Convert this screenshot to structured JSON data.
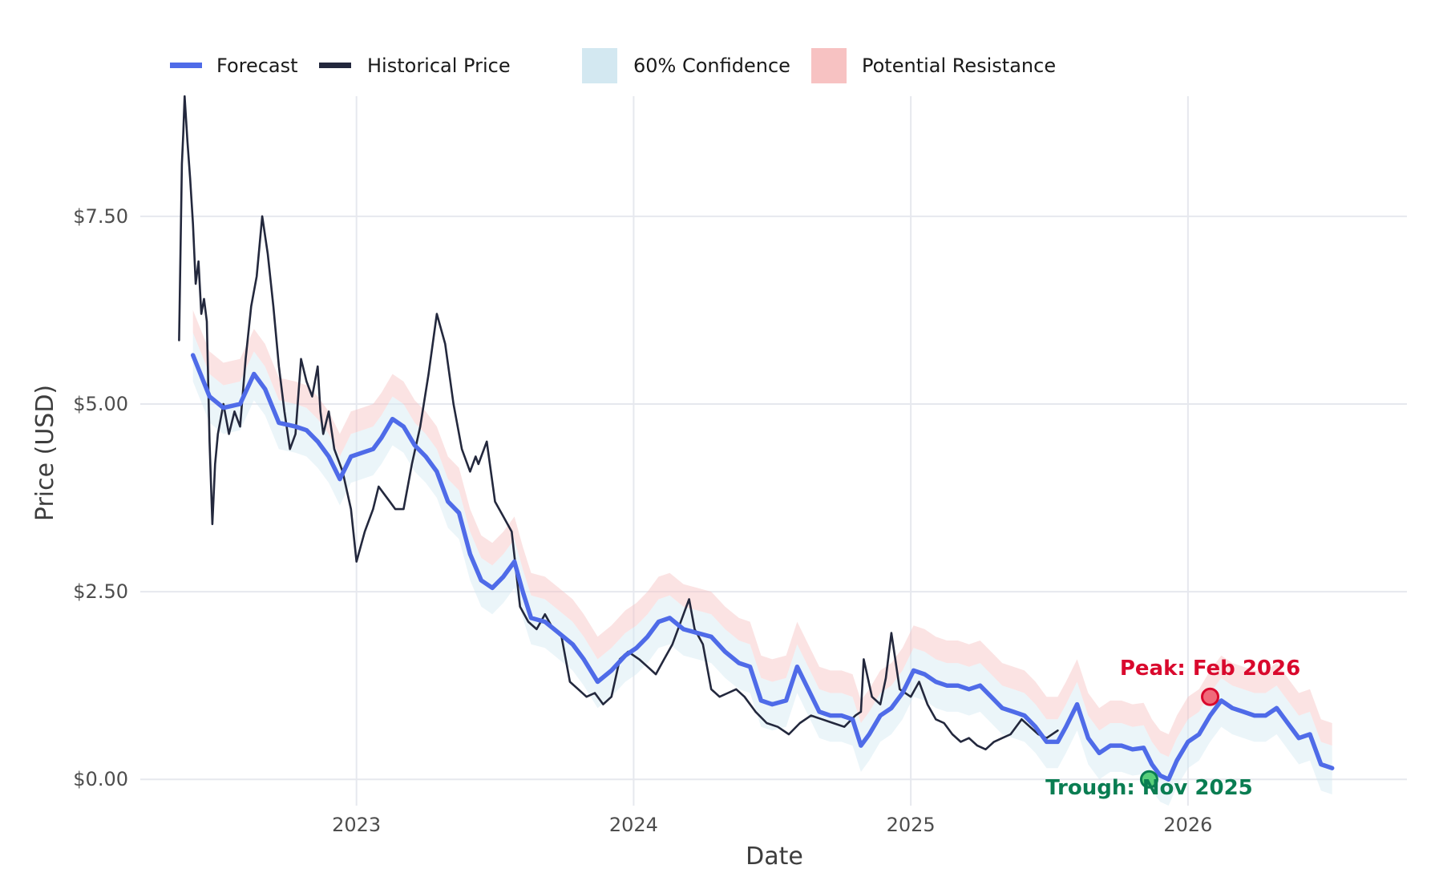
{
  "chart_data": {
    "type": "line",
    "title": "",
    "xlabel": "Date",
    "ylabel": "Price (USD)",
    "xlim": [
      2022.22,
      2026.79
    ],
    "ylim": [
      -0.35,
      9.1
    ],
    "x_ticks": [
      2023,
      2024,
      2025,
      2026
    ],
    "x_tick_labels": [
      "2023",
      "2024",
      "2025",
      "2026"
    ],
    "y_ticks": [
      0.0,
      2.5,
      5.0,
      7.5
    ],
    "y_tick_labels": [
      "$0.00",
      "$2.50",
      "$5.00",
      "$7.50"
    ],
    "grid": true,
    "legend": {
      "placement": "top-left",
      "items": [
        {
          "label": "Forecast",
          "kind": "line",
          "color": "#4f6be8"
        },
        {
          "label": "Historical Price",
          "kind": "line",
          "color": "#23283d"
        },
        {
          "label": "60% Confidence",
          "kind": "band",
          "color": "#d3e8f1"
        },
        {
          "label": "Potential Resistance",
          "kind": "band",
          "color": "#f7c2c2"
        }
      ]
    },
    "series": [
      {
        "name": "Historical Price",
        "color": "#23283d",
        "x": [
          2022.36,
          2022.37,
          2022.375,
          2022.38,
          2022.39,
          2022.4,
          2022.41,
          2022.42,
          2022.43,
          2022.44,
          2022.45,
          2022.46,
          2022.47,
          2022.48,
          2022.49,
          2022.5,
          2022.52,
          2022.54,
          2022.56,
          2022.58,
          2022.6,
          2022.62,
          2022.64,
          2022.66,
          2022.68,
          2022.7,
          2022.72,
          2022.74,
          2022.76,
          2022.78,
          2022.8,
          2022.82,
          2022.84,
          2022.86,
          2022.87,
          2022.88,
          2022.9,
          2022.92,
          2022.95,
          2022.98,
          2023.0,
          2023.03,
          2023.06,
          2023.08,
          2023.1,
          2023.12,
          2023.14,
          2023.17,
          2023.2,
          2023.23,
          2023.26,
          2023.29,
          2023.32,
          2023.35,
          2023.38,
          2023.41,
          2023.43,
          2023.44,
          2023.47,
          2023.5,
          2023.53,
          2023.56,
          2023.59,
          2023.62,
          2023.65,
          2023.68,
          2023.71,
          2023.74,
          2023.77,
          2023.8,
          2023.83,
          2023.86,
          2023.89,
          2023.92,
          2023.95,
          2023.98,
          2024.02,
          2024.05,
          2024.08,
          2024.11,
          2024.14,
          2024.17,
          2024.19,
          2024.2,
          2024.22,
          2024.25,
          2024.28,
          2024.31,
          2024.34,
          2024.37,
          2024.4,
          2024.44,
          2024.48,
          2024.52,
          2024.56,
          2024.6,
          2024.64,
          2024.68,
          2024.72,
          2024.76,
          2024.8,
          2024.82,
          2024.83,
          2024.86,
          2024.89,
          2024.91,
          2024.93,
          2024.96,
          2025.0,
          2025.03,
          2025.06,
          2025.09,
          2025.12,
          2025.15,
          2025.18,
          2025.21,
          2025.24,
          2025.27,
          2025.3,
          2025.33,
          2025.36,
          2025.4,
          2025.43,
          2025.46,
          2025.49,
          2025.53
        ],
        "values": [
          5.85,
          8.2,
          8.6,
          9.1,
          8.5,
          8.0,
          7.4,
          6.6,
          6.9,
          6.2,
          6.4,
          6.1,
          4.5,
          3.4,
          4.2,
          4.6,
          5.0,
          4.6,
          4.9,
          4.7,
          5.6,
          6.3,
          6.7,
          7.5,
          7.0,
          6.3,
          5.5,
          4.9,
          4.4,
          4.6,
          5.6,
          5.3,
          5.1,
          5.5,
          4.9,
          4.6,
          4.9,
          4.4,
          4.1,
          3.6,
          2.9,
          3.3,
          3.6,
          3.9,
          3.8,
          3.7,
          3.6,
          3.6,
          4.2,
          4.7,
          5.4,
          6.2,
          5.8,
          5.0,
          4.4,
          4.1,
          4.3,
          4.2,
          4.5,
          3.7,
          3.5,
          3.3,
          2.3,
          2.1,
          2.0,
          2.2,
          2.0,
          1.9,
          1.3,
          1.2,
          1.1,
          1.15,
          1.0,
          1.1,
          1.6,
          1.7,
          1.6,
          1.5,
          1.4,
          1.6,
          1.8,
          2.1,
          2.3,
          2.4,
          2.0,
          1.8,
          1.2,
          1.1,
          1.15,
          1.2,
          1.1,
          0.9,
          0.75,
          0.7,
          0.6,
          0.75,
          0.85,
          0.8,
          0.75,
          0.7,
          0.85,
          0.9,
          1.6,
          1.1,
          1.0,
          1.35,
          1.95,
          1.2,
          1.1,
          1.3,
          1.0,
          0.8,
          0.75,
          0.6,
          0.5,
          0.55,
          0.45,
          0.4,
          0.5,
          0.55,
          0.6,
          0.8,
          0.7,
          0.6,
          0.55,
          0.65
        ]
      },
      {
        "name": "Forecast",
        "color": "#4f6be8",
        "x": [
          2022.41,
          2022.47,
          2022.52,
          2022.58,
          2022.63,
          2022.67,
          2022.72,
          2022.78,
          2022.82,
          2022.86,
          2022.9,
          2022.94,
          2022.98,
          2023.02,
          2023.06,
          2023.09,
          2023.13,
          2023.17,
          2023.21,
          2023.25,
          2023.29,
          2023.33,
          2023.37,
          2023.41,
          2023.45,
          2023.49,
          2023.53,
          2023.57,
          2023.6,
          2023.63,
          2023.68,
          2023.73,
          2023.78,
          2023.82,
          2023.87,
          2023.92,
          2023.97,
          2024.01,
          2024.05,
          2024.09,
          2024.13,
          2024.18,
          2024.23,
          2024.28,
          2024.33,
          2024.38,
          2024.42,
          2024.46,
          2024.5,
          2024.55,
          2024.59,
          2024.63,
          2024.67,
          2024.71,
          2024.75,
          2024.79,
          2024.82,
          2024.85,
          2024.89,
          2024.93,
          2024.97,
          2025.01,
          2025.05,
          2025.09,
          2025.13,
          2025.17,
          2025.21,
          2025.25,
          2025.29,
          2025.33,
          2025.37,
          2025.41,
          2025.45,
          2025.49,
          2025.53,
          2025.56,
          2025.6,
          2025.64,
          2025.68,
          2025.72,
          2025.76,
          2025.8,
          2025.84,
          2025.87,
          2025.9,
          2025.93,
          2025.96,
          2026.0,
          2026.04,
          2026.08,
          2026.12,
          2026.16,
          2026.2,
          2026.24,
          2026.28,
          2026.32,
          2026.36,
          2026.4,
          2026.44,
          2026.48,
          2026.52
        ],
        "values": [
          5.65,
          5.1,
          4.95,
          5.0,
          5.4,
          5.2,
          4.75,
          4.7,
          4.65,
          4.5,
          4.3,
          4.0,
          4.3,
          4.35,
          4.4,
          4.55,
          4.8,
          4.7,
          4.45,
          4.3,
          4.1,
          3.7,
          3.55,
          3.0,
          2.65,
          2.55,
          2.7,
          2.9,
          2.5,
          2.15,
          2.1,
          1.95,
          1.8,
          1.6,
          1.3,
          1.45,
          1.65,
          1.75,
          1.9,
          2.1,
          2.15,
          2.0,
          1.95,
          1.9,
          1.7,
          1.55,
          1.5,
          1.05,
          1.0,
          1.05,
          1.5,
          1.2,
          0.9,
          0.85,
          0.85,
          0.8,
          0.45,
          0.6,
          0.85,
          0.95,
          1.15,
          1.45,
          1.4,
          1.3,
          1.25,
          1.25,
          1.2,
          1.25,
          1.1,
          0.95,
          0.9,
          0.85,
          0.7,
          0.5,
          0.5,
          0.7,
          1.0,
          0.55,
          0.35,
          0.45,
          0.45,
          0.4,
          0.42,
          0.2,
          0.05,
          0.0,
          0.25,
          0.5,
          0.6,
          0.85,
          1.05,
          0.95,
          0.9,
          0.85,
          0.85,
          0.95,
          0.75,
          0.55,
          0.6,
          0.2,
          0.15
        ]
      }
    ],
    "bands": [
      {
        "name": "60% Confidence",
        "color": "#d3e8f1",
        "opacity": 0.45,
        "offset_lower": -0.35,
        "offset_upper": 0.3
      },
      {
        "name": "Potential Resistance",
        "color": "#f7c2c2",
        "opacity": 0.45,
        "offset_lower": 0.3,
        "offset_upper": 0.6
      }
    ],
    "annotations": [
      {
        "text": "Peak: Feb 2026",
        "x": 2026.08,
        "y": 1.1,
        "color": "#d9092d",
        "position": "above",
        "marker_fill": "#f06a7a"
      },
      {
        "text": "Trough: Nov 2025",
        "x": 2025.86,
        "y": 0.0,
        "color": "#0a7d52",
        "position": "below",
        "marker_fill": "#58cf7a"
      }
    ]
  }
}
